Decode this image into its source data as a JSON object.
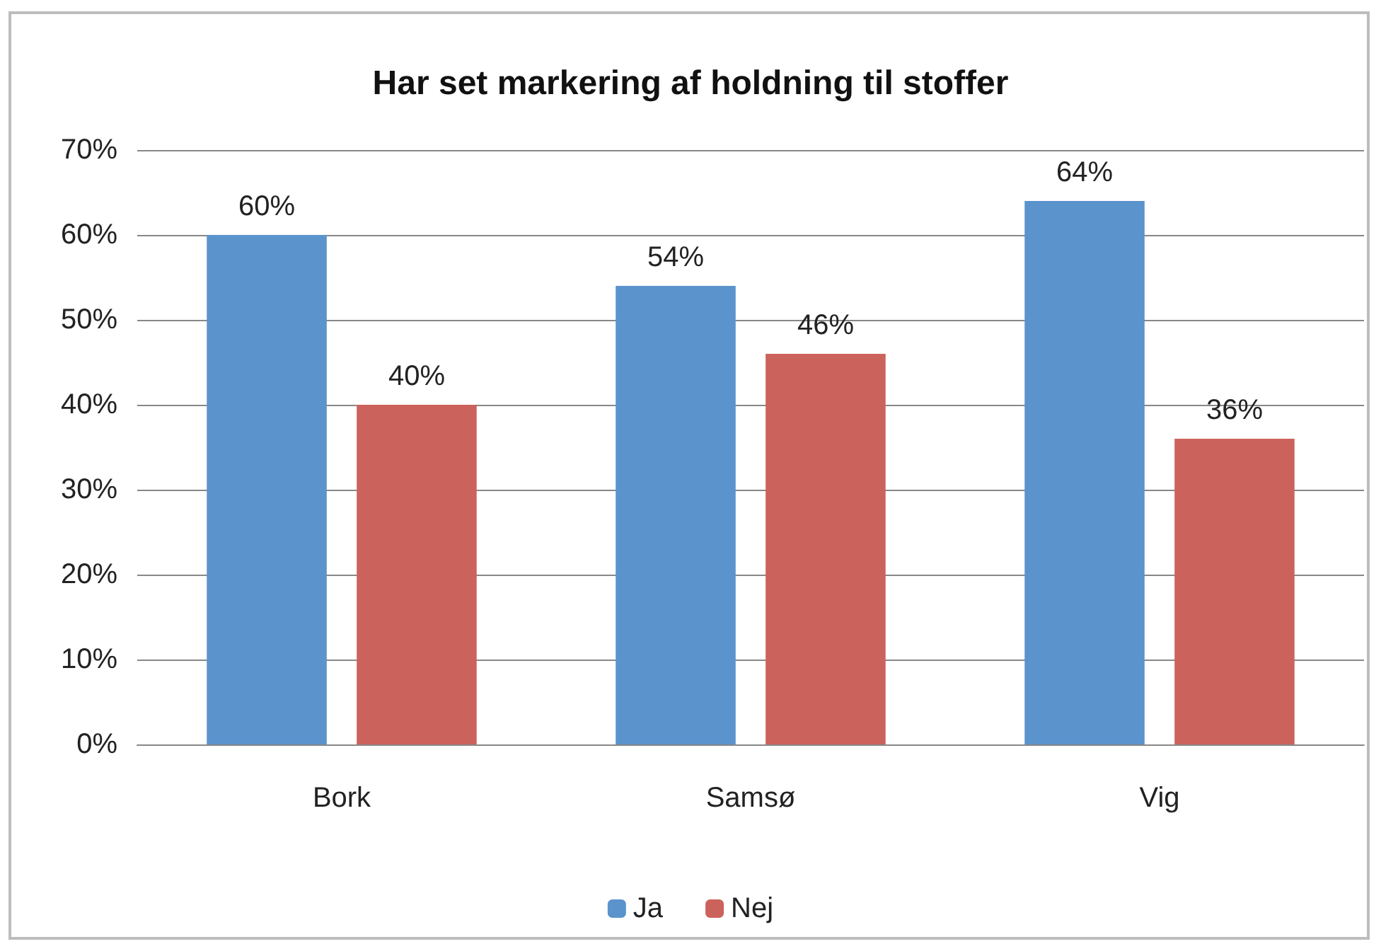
{
  "chart_data": {
    "type": "bar",
    "title": "Har set markering af holdning til stoffer",
    "categories": [
      "Bork",
      "Samsø",
      "Vig"
    ],
    "series": [
      {
        "name": "Ja",
        "color": "#5b93cc",
        "values": [
          60,
          54,
          64
        ],
        "value_labels": [
          "60%",
          "54%",
          "64%"
        ]
      },
      {
        "name": "Nej",
        "color": "#cc625c",
        "values": [
          40,
          46,
          36
        ],
        "value_labels": [
          "40%",
          "46%",
          "36%"
        ]
      }
    ],
    "ylim": [
      0,
      70
    ],
    "yticks": [
      {
        "value": 0,
        "label": "0%"
      },
      {
        "value": 10,
        "label": "10%"
      },
      {
        "value": 20,
        "label": "20%"
      },
      {
        "value": 30,
        "label": "30%"
      },
      {
        "value": 40,
        "label": "40%"
      },
      {
        "value": 50,
        "label": "50%"
      },
      {
        "value": 60,
        "label": "60%"
      },
      {
        "value": 70,
        "label": "70%"
      }
    ],
    "grid": "y",
    "legend": "bottom"
  }
}
